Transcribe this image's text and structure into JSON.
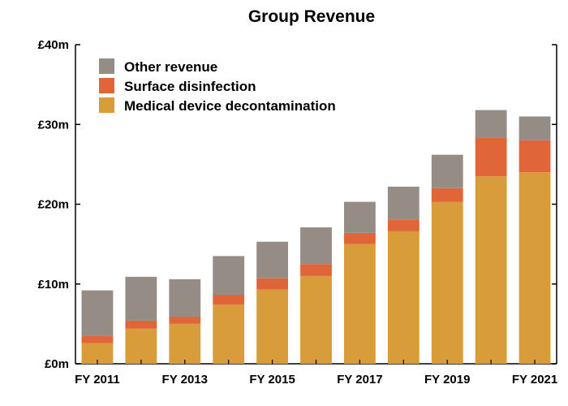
{
  "chart_data": {
    "type": "bar",
    "stacked": true,
    "title": "Group Revenue",
    "xlabel": "",
    "ylabel": "",
    "categories": [
      "FY 2011",
      "FY 2012",
      "FY 2013",
      "FY 2014",
      "FY 2015",
      "FY 2016",
      "FY 2017",
      "FY 2018",
      "FY 2019",
      "FY 2020",
      "FY 2021"
    ],
    "x_tick_labels": [
      "FY 2011",
      "",
      "FY 2013",
      "",
      "FY 2015",
      "",
      "FY 2017",
      "",
      "FY 2019",
      "",
      "FY 2021"
    ],
    "y_tick_labels": [
      "£0m",
      "£10m",
      "£20m",
      "£30m",
      "£40m"
    ],
    "y_ticks": [
      0,
      10,
      20,
      30,
      40
    ],
    "ylim": [
      0,
      40
    ],
    "grid": false,
    "legend_position": "top-left",
    "series": [
      {
        "name": "Medical device decontamination",
        "color": "#D89C3B",
        "values": [
          2.6,
          4.4,
          5.0,
          7.4,
          9.3,
          11.0,
          15.0,
          16.6,
          20.3,
          23.5,
          24.0
        ]
      },
      {
        "name": "Surface disinfection",
        "color": "#E0663A",
        "values": [
          0.9,
          1.0,
          0.9,
          1.2,
          1.4,
          1.5,
          1.4,
          1.5,
          1.7,
          4.8,
          4.0
        ]
      },
      {
        "name": "Other revenue",
        "color": "#958C85",
        "values": [
          5.7,
          5.5,
          4.7,
          4.9,
          4.6,
          4.6,
          3.9,
          4.1,
          4.2,
          3.5,
          3.0
        ]
      }
    ],
    "legend_order": [
      "Other revenue",
      "Surface disinfection",
      "Medical device decontamination"
    ]
  }
}
